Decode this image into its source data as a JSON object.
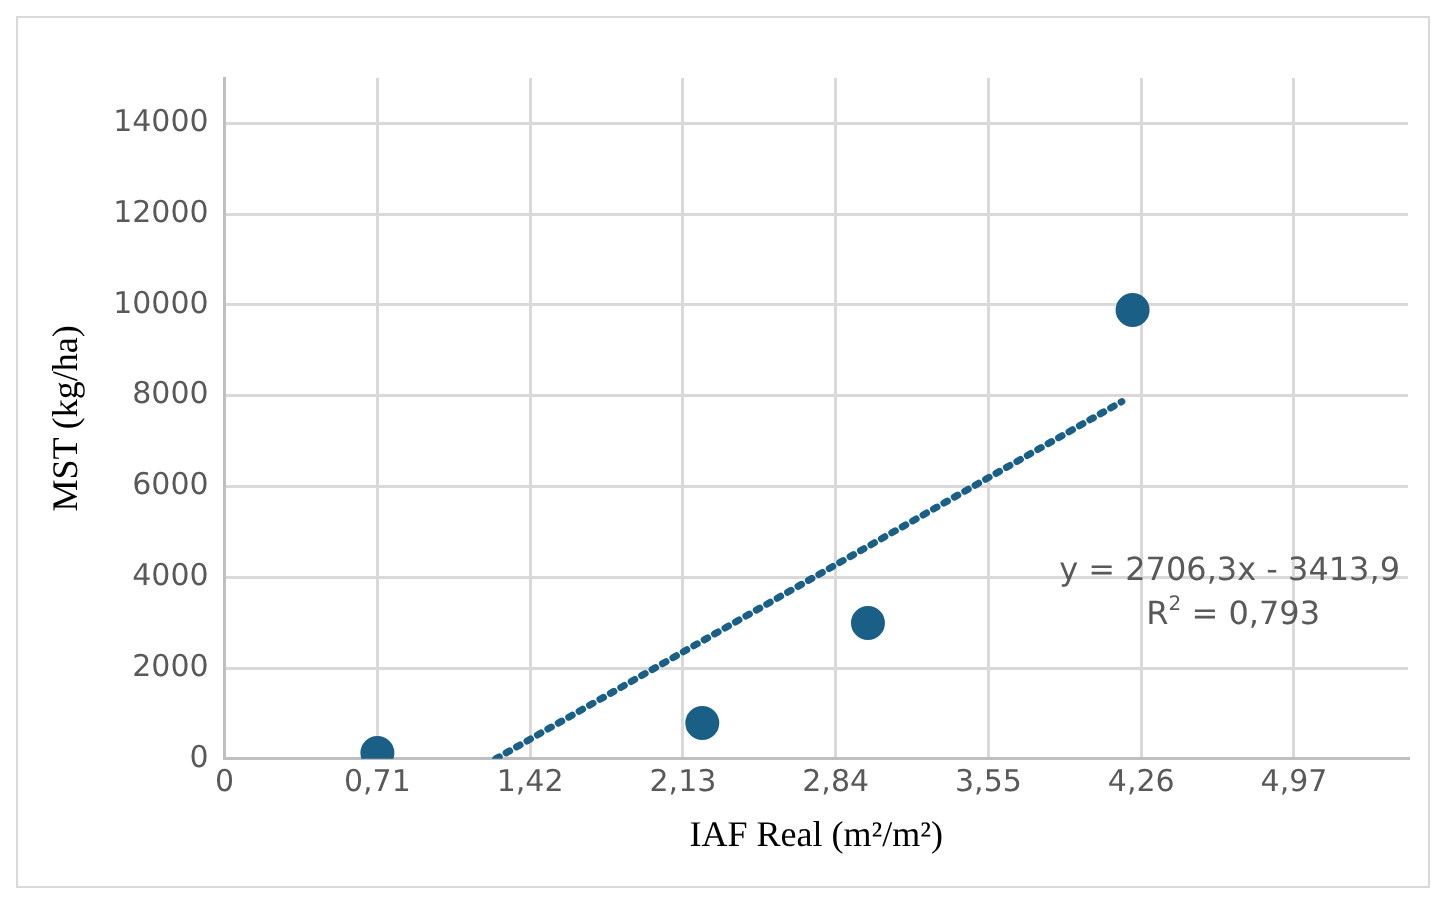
{
  "chart_data": {
    "type": "scatter",
    "xlabel": "IAF Real (m²/m²)",
    "ylabel": "MST (kg/ha)",
    "xlim": [
      0,
      5.5
    ],
    "xticks": [
      0,
      {
        "value": 0.71,
        "label": "0,71"
      },
      {
        "value": 1.42,
        "label": "1,42"
      },
      {
        "value": 2.13,
        "label": "2,13"
      },
      {
        "value": 2.84,
        "label": "2,84"
      },
      {
        "value": 3.55,
        "label": "3,55"
      },
      {
        "value": 4.26,
        "label": "4,26"
      },
      {
        "value": 4.97,
        "label": "4,97"
      }
    ],
    "ylim": [
      0,
      15000
    ],
    "yticks": [
      0,
      2000,
      4000,
      6000,
      8000,
      10000,
      12000,
      14000
    ],
    "grid": true,
    "marker": "circle",
    "series": [
      {
        "color": "#1a5f86",
        "x": [
          0.71,
          2.22,
          2.99,
          4.22
        ],
        "values": [
          130,
          790,
          2990,
          9890
        ]
      },
      {
        "type": "line",
        "line_style": "dotted",
        "marker": "none",
        "color": "#1a5f86",
        "x": [
          1.26,
          4.17
        ],
        "values": [
          0,
          7871
        ]
      }
    ],
    "annotations": [
      "y = 2706,3x - 3413,9",
      "R$^{2}$ = 0,793"
    ]
  }
}
